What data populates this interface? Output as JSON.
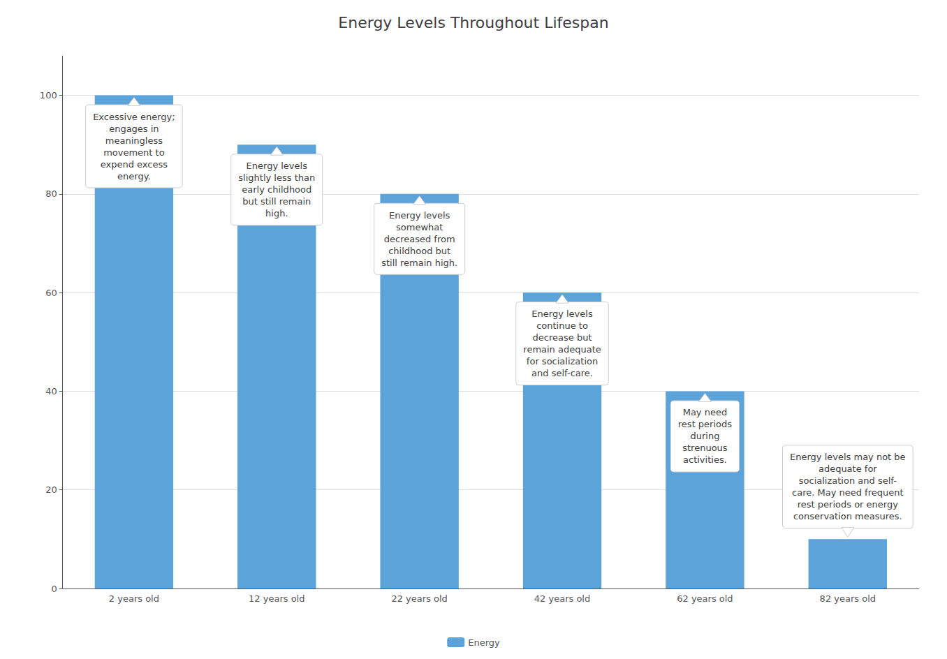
{
  "chart_data": {
    "type": "bar",
    "title": "Energy Levels Throughout Lifespan",
    "categories": [
      "2 years old",
      "12 years old",
      "22 years old",
      "42 years old",
      "62 years old",
      "82 years old"
    ],
    "series": [
      {
        "name": "Energy",
        "color": "#5BA3D9",
        "values": [
          100,
          90,
          80,
          60,
          40,
          10
        ]
      }
    ],
    "ylim": [
      0,
      108
    ],
    "yticks": [
      0,
      20,
      40,
      60,
      80,
      100
    ],
    "grid": true,
    "legend": "bottom",
    "annotations": [
      {
        "text": "Excessive energy;\nengages in\nmeaningless\nmovement to\nexpend excess\nenergy.",
        "x": "2 years old",
        "y": 100
      },
      {
        "text": "Energy levels\nslightly less than\nearly childhood\nbut still remain\nhigh.",
        "x": "12 years old",
        "y": 90
      },
      {
        "text": "Energy levels\nsomewhat\ndecreased from\nchildhood but\nstill remain high.",
        "x": "22 years old",
        "y": 80
      },
      {
        "text": "Energy levels\ncontinue to\ndecrease but\nremain adequate\nfor socialization\nand self-care.",
        "x": "42 years old",
        "y": 60
      },
      {
        "text": "May need\nrest periods\nduring\nstrenuous\nactivities.",
        "x": "62 years old",
        "y": 40
      },
      {
        "text": "Energy levels may not be\nadequate for\nsocialization and self-\ncare. May need frequent\nrest periods or energy\nconservation measures.",
        "x": "82 years old",
        "y": 10
      }
    ]
  }
}
